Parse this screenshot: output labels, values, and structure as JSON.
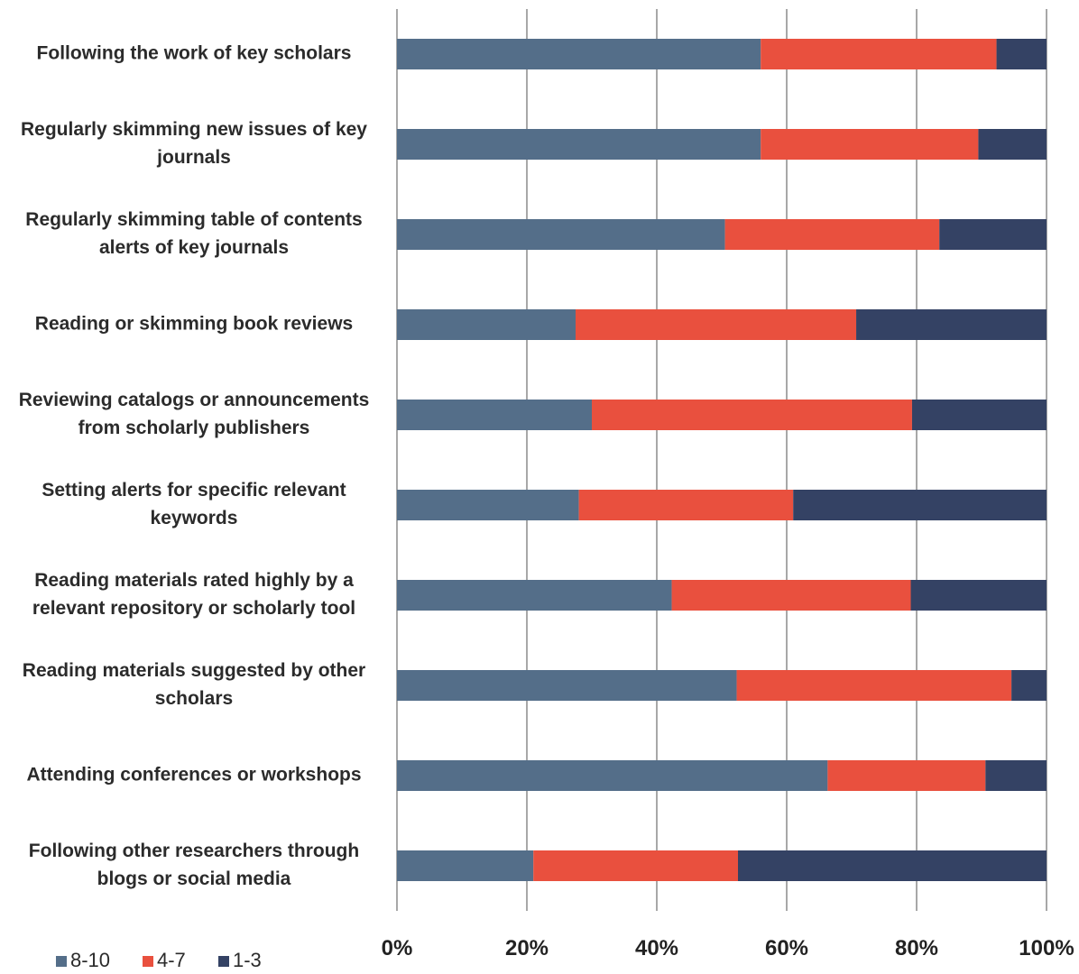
{
  "chart_data": {
    "type": "bar",
    "orientation": "horizontal",
    "stacked": true,
    "percent": true,
    "categories": [
      "Following the work of key scholars",
      "Regularly skimming new issues of key journals",
      "Regularly skimming table of contents alerts of key journals",
      "Reading or skimming book reviews",
      "Reviewing catalogs or announcements from scholarly publishers",
      "Setting alerts for specific relevant keywords",
      "Reading materials rated highly by a relevant repository or scholarly tool",
      "Reading materials suggested by other scholars",
      "Attending conferences or workshops",
      "Following other researchers through blogs or social media"
    ],
    "category_lines": [
      [
        "Following the work of key scholars"
      ],
      [
        "Regularly skimming new issues of key",
        "journals"
      ],
      [
        "Regularly skimming table of contents",
        "alerts of key journals"
      ],
      [
        "Reading or skimming book reviews"
      ],
      [
        "Reviewing catalogs or announcements",
        "from scholarly publishers"
      ],
      [
        "Setting alerts for specific relevant",
        "keywords"
      ],
      [
        "Reading materials rated highly by a",
        "relevant repository or scholarly tool"
      ],
      [
        "Reading materials suggested by other",
        "scholars"
      ],
      [
        "Attending conferences or workshops"
      ],
      [
        "Following other researchers through",
        "blogs or social media"
      ]
    ],
    "series": [
      {
        "name": "8-10",
        "color": "#546e89",
        "values": [
          56,
          56,
          50.5,
          27.5,
          30,
          28,
          42.3,
          52.3,
          66.3,
          21
        ]
      },
      {
        "name": "4-7",
        "color": "#e9503e",
        "values": [
          36.3,
          33.5,
          33,
          43.2,
          49.3,
          33,
          36.8,
          42.3,
          24.3,
          31.5
        ]
      },
      {
        "name": "1-3",
        "color": "#344264",
        "values": [
          7.7,
          10.5,
          16.5,
          29.3,
          20.7,
          39,
          20.9,
          5.4,
          9.4,
          47.5
        ]
      }
    ],
    "xlim": [
      0,
      100
    ],
    "xticks": [
      "0%",
      "20%",
      "40%",
      "60%",
      "80%",
      "100%"
    ],
    "grid": true,
    "gridline_color": "#8c8c8c",
    "legend_position": "bottom-left",
    "title": "",
    "xlabel": "",
    "ylabel": ""
  }
}
